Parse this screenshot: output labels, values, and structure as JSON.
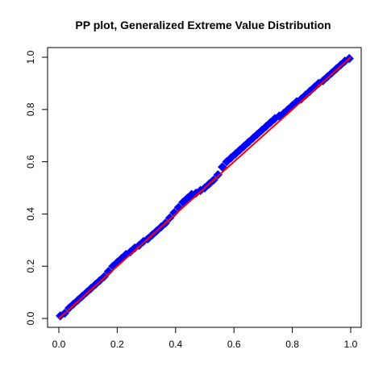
{
  "chart_data": {
    "type": "scatter",
    "title": "PP plot, Generalized Extreme Value Distribution",
    "xlabel": "",
    "ylabel": "",
    "xlim": [
      0,
      1
    ],
    "ylim": [
      0,
      1
    ],
    "x_ticks": [
      "0.0",
      "0.2",
      "0.4",
      "0.6",
      "0.8",
      "1.0"
    ],
    "y_ticks": [
      "0.0",
      "0.2",
      "0.4",
      "0.6",
      "0.8",
      "1.0"
    ],
    "grid": false,
    "legend": "none",
    "colors": {
      "points": "#0000ff",
      "reference_line": "#ff0000"
    },
    "series": [
      {
        "kind": "points",
        "marker": "diamond",
        "x": [
          0.005,
          0.02,
          0.035,
          0.05,
          0.065,
          0.08,
          0.095,
          0.11,
          0.125,
          0.14,
          0.155,
          0.17,
          0.185,
          0.2,
          0.215,
          0.23,
          0.245,
          0.26,
          0.275,
          0.29,
          0.305,
          0.32,
          0.335,
          0.35,
          0.365,
          0.38,
          0.395,
          0.41,
          0.425,
          0.44,
          0.455,
          0.47,
          0.485,
          0.5,
          0.515,
          0.53,
          0.545,
          0.56,
          0.575,
          0.59,
          0.605,
          0.62,
          0.635,
          0.65,
          0.665,
          0.68,
          0.695,
          0.71,
          0.725,
          0.74,
          0.755,
          0.77,
          0.785,
          0.8,
          0.815,
          0.83,
          0.845,
          0.86,
          0.875,
          0.89,
          0.905,
          0.92,
          0.935,
          0.95,
          0.965,
          0.98,
          0.995
        ],
        "y": [
          0.01,
          0.02,
          0.04,
          0.055,
          0.07,
          0.085,
          0.1,
          0.115,
          0.13,
          0.145,
          0.16,
          0.18,
          0.2,
          0.215,
          0.23,
          0.245,
          0.255,
          0.27,
          0.28,
          0.295,
          0.305,
          0.32,
          0.335,
          0.35,
          0.365,
          0.385,
          0.405,
          0.425,
          0.445,
          0.46,
          0.475,
          0.48,
          0.49,
          0.5,
          0.515,
          0.53,
          0.55,
          0.58,
          0.6,
          0.615,
          0.63,
          0.645,
          0.66,
          0.675,
          0.69,
          0.705,
          0.72,
          0.735,
          0.75,
          0.765,
          0.775,
          0.785,
          0.8,
          0.815,
          0.83,
          0.84,
          0.855,
          0.87,
          0.885,
          0.9,
          0.91,
          0.925,
          0.94,
          0.955,
          0.97,
          0.985,
          0.995
        ]
      },
      {
        "kind": "line",
        "x": [
          0,
          1
        ],
        "y": [
          0,
          1
        ]
      }
    ]
  }
}
